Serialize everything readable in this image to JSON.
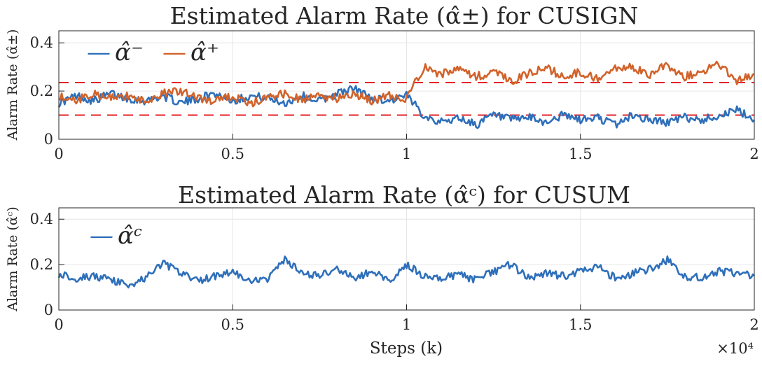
{
  "figure": {
    "x_exponent": "×10⁴",
    "legend_symbol": "—"
  },
  "chart_data": [
    {
      "type": "line",
      "title": "Estimated Alarm Rate (α̂±) for CUSIGN",
      "xlabel": "",
      "ylabel": "Alarm Rate (α̂±)",
      "xlim": [
        0,
        20000
      ],
      "ylim": [
        0,
        0.45
      ],
      "x_ticks": [
        0,
        0.5,
        1,
        1.5,
        2
      ],
      "y_ticks": [
        0,
        0.2,
        0.4
      ],
      "x_tick_labels": [
        "0",
        "0.5",
        "1",
        "1.5",
        "2"
      ],
      "y_tick_labels": [
        "0",
        "0.2",
        "0.4"
      ],
      "grid": true,
      "legend_position": "top-left",
      "thresholds": [
        0.235,
        0.1
      ],
      "x": [
        0,
        500,
        1000,
        1500,
        2000,
        2500,
        3000,
        3500,
        4000,
        4500,
        5000,
        5500,
        6000,
        6500,
        7000,
        7500,
        8000,
        8500,
        9000,
        9500,
        10000,
        10500,
        11000,
        11500,
        12000,
        12500,
        13000,
        13500,
        14000,
        14500,
        15000,
        15500,
        16000,
        16500,
        17000,
        17500,
        18000,
        18500,
        19000,
        19500,
        20000
      ],
      "series": [
        {
          "name": "α̂⁻",
          "color": "#2e6fba",
          "values": [
            0.15,
            0.18,
            0.16,
            0.19,
            0.17,
            0.16,
            0.18,
            0.15,
            0.17,
            0.19,
            0.16,
            0.18,
            0.17,
            0.15,
            0.18,
            0.16,
            0.19,
            0.21,
            0.17,
            0.16,
            0.18,
            0.1,
            0.07,
            0.09,
            0.06,
            0.1,
            0.08,
            0.09,
            0.07,
            0.1,
            0.08,
            0.09,
            0.06,
            0.1,
            0.08,
            0.07,
            0.09,
            0.08,
            0.1,
            0.12,
            0.08
          ]
        },
        {
          "name": "α̂⁺",
          "color": "#d1622a",
          "values": [
            0.18,
            0.16,
            0.19,
            0.17,
            0.18,
            0.16,
            0.19,
            0.2,
            0.17,
            0.16,
            0.18,
            0.15,
            0.17,
            0.19,
            0.16,
            0.18,
            0.17,
            0.19,
            0.16,
            0.18,
            0.17,
            0.3,
            0.27,
            0.29,
            0.26,
            0.28,
            0.24,
            0.27,
            0.3,
            0.26,
            0.28,
            0.25,
            0.29,
            0.3,
            0.27,
            0.31,
            0.26,
            0.28,
            0.31,
            0.24,
            0.27
          ]
        }
      ]
    },
    {
      "type": "line",
      "title": "Estimated Alarm Rate (α̂ᶜ) for CUSUM",
      "xlabel": "Steps (k)",
      "ylabel": "Alarm Rate (α̂ᶜ)",
      "xlim": [
        0,
        20000
      ],
      "ylim": [
        0,
        0.45
      ],
      "x_ticks": [
        0,
        0.5,
        1,
        1.5,
        2
      ],
      "y_ticks": [
        0,
        0.2,
        0.4
      ],
      "x_tick_labels": [
        "0",
        "0.5",
        "1",
        "1.5",
        "2"
      ],
      "y_tick_labels": [
        "0",
        "0.2",
        "0.4"
      ],
      "grid": true,
      "legend_position": "top-left",
      "x": [
        0,
        500,
        1000,
        1500,
        2000,
        2500,
        3000,
        3500,
        4000,
        4500,
        5000,
        5500,
        6000,
        6500,
        7000,
        7500,
        8000,
        8500,
        9000,
        9500,
        10000,
        10500,
        11000,
        11500,
        12000,
        12500,
        13000,
        13500,
        14000,
        14500,
        15000,
        15500,
        16000,
        16500,
        17000,
        17500,
        18000,
        18500,
        19000,
        19500,
        20000
      ],
      "series": [
        {
          "name": "α̂ᶜ",
          "color": "#2e6fba",
          "values": [
            0.16,
            0.14,
            0.15,
            0.13,
            0.11,
            0.14,
            0.21,
            0.16,
            0.13,
            0.15,
            0.17,
            0.12,
            0.14,
            0.22,
            0.16,
            0.15,
            0.18,
            0.14,
            0.17,
            0.13,
            0.2,
            0.15,
            0.14,
            0.16,
            0.13,
            0.17,
            0.2,
            0.14,
            0.16,
            0.15,
            0.17,
            0.19,
            0.14,
            0.16,
            0.18,
            0.22,
            0.15,
            0.14,
            0.17,
            0.16,
            0.15
          ]
        }
      ]
    }
  ]
}
